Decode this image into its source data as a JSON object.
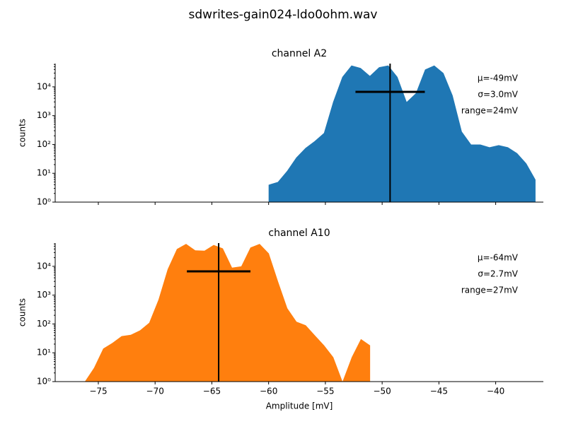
{
  "figure_title": "sdwrites-gain024-ldo0ohm.wav",
  "chart_data": [
    {
      "type": "area",
      "title": "channel A2",
      "ylabel": "counts",
      "yscale": "log",
      "color": "#1f77b4",
      "x": [
        -60,
        -59.19,
        -58.38,
        -57.57,
        -56.76,
        -55.95,
        -55.13,
        -54.32,
        -53.51,
        -52.7,
        -51.89,
        -51.08,
        -50.27,
        -49.46,
        -48.65,
        -47.84,
        -47.03,
        -46.22,
        -45.41,
        -44.6,
        -43.79,
        -42.98,
        -42.16,
        -41.35,
        -40.54,
        -39.73,
        -38.92,
        -38.11,
        -37.3,
        -36.49
      ],
      "values": [
        4,
        5,
        12,
        35,
        75,
        130,
        250,
        3000,
        22000,
        55000,
        45000,
        24000,
        48000,
        55000,
        22000,
        3000,
        6000,
        40000,
        55000,
        30000,
        5000,
        280,
        100,
        100,
        80,
        95,
        80,
        50,
        22,
        6
      ],
      "xlim": [
        -78.8,
        -35.8
      ],
      "ylim": [
        1,
        64000
      ],
      "xticks": [
        -75,
        -70,
        -65,
        -60,
        -55,
        -50,
        -45,
        -40
      ],
      "yticks": [
        {
          "value": 1,
          "label": "10⁰"
        },
        {
          "value": 10,
          "label": "10¹"
        },
        {
          "value": 100,
          "label": "10²"
        },
        {
          "value": 1000,
          "label": "10³"
        },
        {
          "value": 10000,
          "label": "10⁴"
        }
      ],
      "annotations": [
        "μ=-49mV",
        "σ=3.0mV",
        "range=24mV"
      ],
      "marker": {
        "x": -49.3,
        "xmin": -52.35,
        "xmax": -46.24,
        "y": 6700
      }
    },
    {
      "type": "area",
      "title": "channel A10",
      "ylabel": "counts",
      "xlabel": "Amplitude [mV]",
      "yscale": "log",
      "color": "#ff7f0e",
      "x": [
        -76.19,
        -75.38,
        -74.57,
        -73.76,
        -72.95,
        -72.14,
        -71.33,
        -70.52,
        -69.7,
        -68.89,
        -68.08,
        -67.27,
        -66.46,
        -65.65,
        -64.84,
        -64.03,
        -63.22,
        -62.41,
        -61.6,
        -60.79,
        -59.98,
        -59.17,
        -58.35,
        -57.54,
        -56.73,
        -55.92,
        -55.11,
        -54.3,
        -53.49,
        -52.68,
        -51.87,
        -51.06
      ],
      "values": [
        1,
        3,
        14,
        22,
        38,
        42,
        60,
        110,
        700,
        8000,
        40000,
        60000,
        36000,
        35000,
        55000,
        42000,
        9000,
        10000,
        45000,
        60000,
        28000,
        3000,
        350,
        120,
        90,
        40,
        18,
        7,
        1,
        7,
        30,
        18
      ],
      "xlim": [
        -78.8,
        -35.8
      ],
      "ylim": [
        1,
        64000
      ],
      "xticks": [
        {
          "value": -75,
          "label": "−75"
        },
        {
          "value": -70,
          "label": "−70"
        },
        {
          "value": -65,
          "label": "−65"
        },
        {
          "value": -60,
          "label": "−60"
        },
        {
          "value": -55,
          "label": "−55"
        },
        {
          "value": -50,
          "label": "−50"
        },
        {
          "value": -45,
          "label": "−45"
        },
        {
          "value": -40,
          "label": "−40"
        }
      ],
      "yticks": [
        {
          "value": 1,
          "label": "10⁰"
        },
        {
          "value": 10,
          "label": "10¹"
        },
        {
          "value": 100,
          "label": "10²"
        },
        {
          "value": 1000,
          "label": "10³"
        },
        {
          "value": 10000,
          "label": "10⁴"
        }
      ],
      "annotations": [
        "μ=-64mV",
        "σ=2.7mV",
        "range=27mV"
      ],
      "marker": {
        "x": -64.4,
        "xmin": -67.2,
        "xmax": -61.6,
        "y": 6700
      }
    }
  ]
}
